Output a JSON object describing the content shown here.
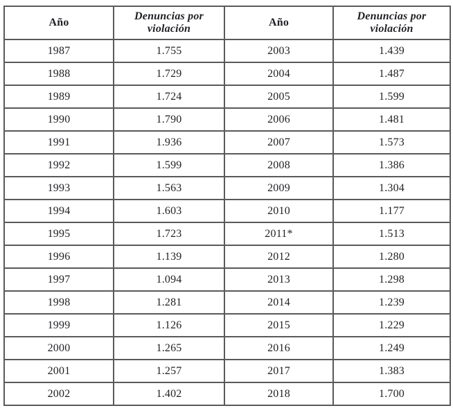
{
  "table": {
    "headers": [
      {
        "label": "Año",
        "italic": false
      },
      {
        "label": "Denuncias por violación",
        "italic": true
      },
      {
        "label": "Año",
        "italic": false
      },
      {
        "label": "Denuncias por violación",
        "italic": true
      }
    ],
    "rows": [
      [
        "1987",
        "1.755",
        "2003",
        "1.439"
      ],
      [
        "1988",
        "1.729",
        "2004",
        "1.487"
      ],
      [
        "1989",
        "1.724",
        "2005",
        "1.599"
      ],
      [
        "1990",
        "1.790",
        "2006",
        "1.481"
      ],
      [
        "1991",
        "1.936",
        "2007",
        "1.573"
      ],
      [
        "1992",
        "1.599",
        "2008",
        "1.386"
      ],
      [
        "1993",
        "1.563",
        "2009",
        "1.304"
      ],
      [
        "1994",
        "1.603",
        "2010",
        "1.177"
      ],
      [
        "1995",
        "1.723",
        "2011*",
        "1.513"
      ],
      [
        "1996",
        "1.139",
        "2012",
        "1.280"
      ],
      [
        "1997",
        "1.094",
        "2013",
        "1.298"
      ],
      [
        "1998",
        "1.281",
        "2014",
        "1.239"
      ],
      [
        "1999",
        "1.126",
        "2015",
        "1.229"
      ],
      [
        "2000",
        "1.265",
        "2016",
        "1.249"
      ],
      [
        "2001",
        "1.257",
        "2017",
        "1.383"
      ],
      [
        "2002",
        "1.402",
        "2018",
        "1.700"
      ]
    ],
    "colors": {
      "border": "#58595b",
      "text": "#1f2024",
      "background": "#ffffff"
    }
  },
  "chart_data": {
    "type": "table",
    "title": "",
    "columns": [
      "Año",
      "Denuncias por violación",
      "Año",
      "Denuncias por violación"
    ],
    "series": [
      {
        "name": "Denuncias por violación",
        "x": [
          "1987",
          "1988",
          "1989",
          "1990",
          "1991",
          "1992",
          "1993",
          "1994",
          "1995",
          "1996",
          "1997",
          "1998",
          "1999",
          "2000",
          "2001",
          "2002",
          "2003",
          "2004",
          "2005",
          "2006",
          "2007",
          "2008",
          "2009",
          "2010",
          "2011*",
          "2012",
          "2013",
          "2014",
          "2015",
          "2016",
          "2017",
          "2018"
        ],
        "values": [
          1755,
          1729,
          1724,
          1790,
          1936,
          1599,
          1563,
          1603,
          1723,
          1139,
          1094,
          1281,
          1126,
          1265,
          1257,
          1402,
          1439,
          1487,
          1599,
          1481,
          1573,
          1386,
          1304,
          1177,
          1513,
          1280,
          1298,
          1239,
          1229,
          1249,
          1383,
          1700
        ]
      }
    ],
    "notes": "Number format uses Spanish thousands separator (e.g. 1.755 = 1755). Asterisk on 2011 marks a footnote.",
    "layout": {
      "grid": true,
      "panes": 2,
      "rows_per_pane": 16
    }
  }
}
